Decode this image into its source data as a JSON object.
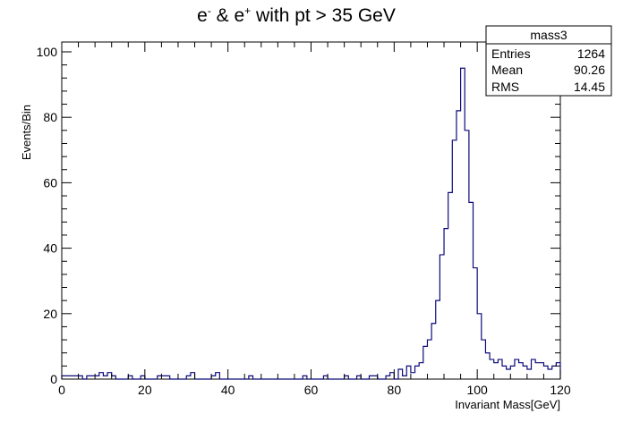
{
  "chart_data": {
    "type": "histogram",
    "title": {
      "base": "e",
      "sup1": "-",
      "mid": " & e",
      "sup2": "+",
      "rest": " with pt > 35 GeV"
    },
    "xlabel": "Invariant Mass[GeV]",
    "ylabel": "Events/Bin",
    "xlim": [
      0,
      120
    ],
    "ylim": [
      0,
      103
    ],
    "x_ticks": [
      0,
      20,
      40,
      60,
      80,
      100,
      120
    ],
    "x_tick_labels": [
      "0",
      "20",
      "40",
      "60",
      "80",
      "100",
      "120"
    ],
    "y_ticks": [
      0,
      20,
      40,
      60,
      80,
      100
    ],
    "y_tick_labels": [
      "0",
      "20",
      "40",
      "60",
      "80",
      "100"
    ],
    "grid": false,
    "line_color": "#0b0b7a",
    "bin_width": 1,
    "bin_edges_start": 0,
    "counts": [
      1,
      1,
      1,
      1,
      1,
      0,
      1,
      1,
      1,
      2,
      1,
      2,
      1,
      0,
      0,
      0,
      1,
      0,
      0,
      1,
      0,
      0,
      0,
      1,
      1,
      1,
      0,
      0,
      0,
      0,
      1,
      2,
      0,
      0,
      0,
      0,
      1,
      2,
      0,
      0,
      0,
      0,
      0,
      0,
      0,
      1,
      0,
      0,
      0,
      0,
      0,
      0,
      0,
      0,
      0,
      0,
      0,
      0,
      1,
      0,
      0,
      0,
      0,
      1,
      0,
      0,
      0,
      0,
      1,
      0,
      0,
      1,
      0,
      0,
      1,
      1,
      0,
      0,
      1,
      2,
      0,
      3,
      1,
      4,
      2,
      4,
      5,
      10,
      12,
      17,
      24,
      38,
      46,
      57,
      73,
      82,
      95,
      76,
      54,
      34,
      20,
      12,
      8,
      6,
      5,
      6,
      4,
      3,
      4,
      6,
      5,
      4,
      3,
      6,
      5,
      5,
      4,
      3,
      4,
      5
    ]
  },
  "stats_box": {
    "name": "mass3",
    "rows": [
      {
        "label": "Entries",
        "value": "1264"
      },
      {
        "label": "Mean",
        "value": "90.26"
      },
      {
        "label": "RMS",
        "value": "14.45"
      }
    ]
  }
}
